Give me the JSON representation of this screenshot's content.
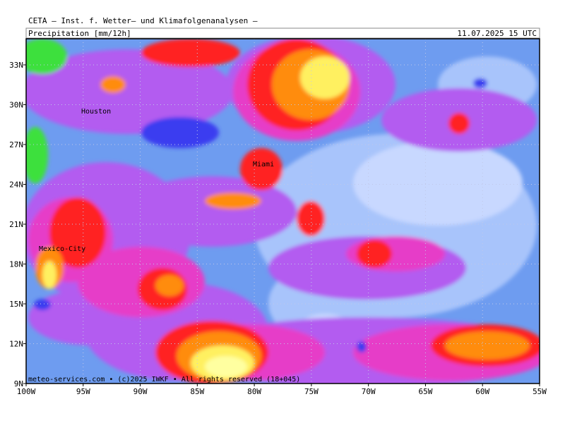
{
  "header": {
    "title": "CETA – Inst. f. Wetter– und Klimafolgenanalysen –",
    "product": "Precipitation [mm/12h]",
    "valid_time": "11.07.2025 15 UTC"
  },
  "map": {
    "lat_labels": [
      "33N",
      "30N",
      "27N",
      "24N",
      "21N",
      "18N",
      "15N",
      "12N",
      "9N"
    ],
    "lon_labels": [
      "100W",
      "95W",
      "90W",
      "85W",
      "80W",
      "75W",
      "70W",
      "65W",
      "60W",
      "55W"
    ],
    "cities": [
      {
        "name": "Houston"
      },
      {
        "name": "Miami"
      },
      {
        "name": "Mexico-City"
      }
    ],
    "footer": "meteo-services.com • (c)2025 IWKF • All rights reserved (18+045)"
  }
}
